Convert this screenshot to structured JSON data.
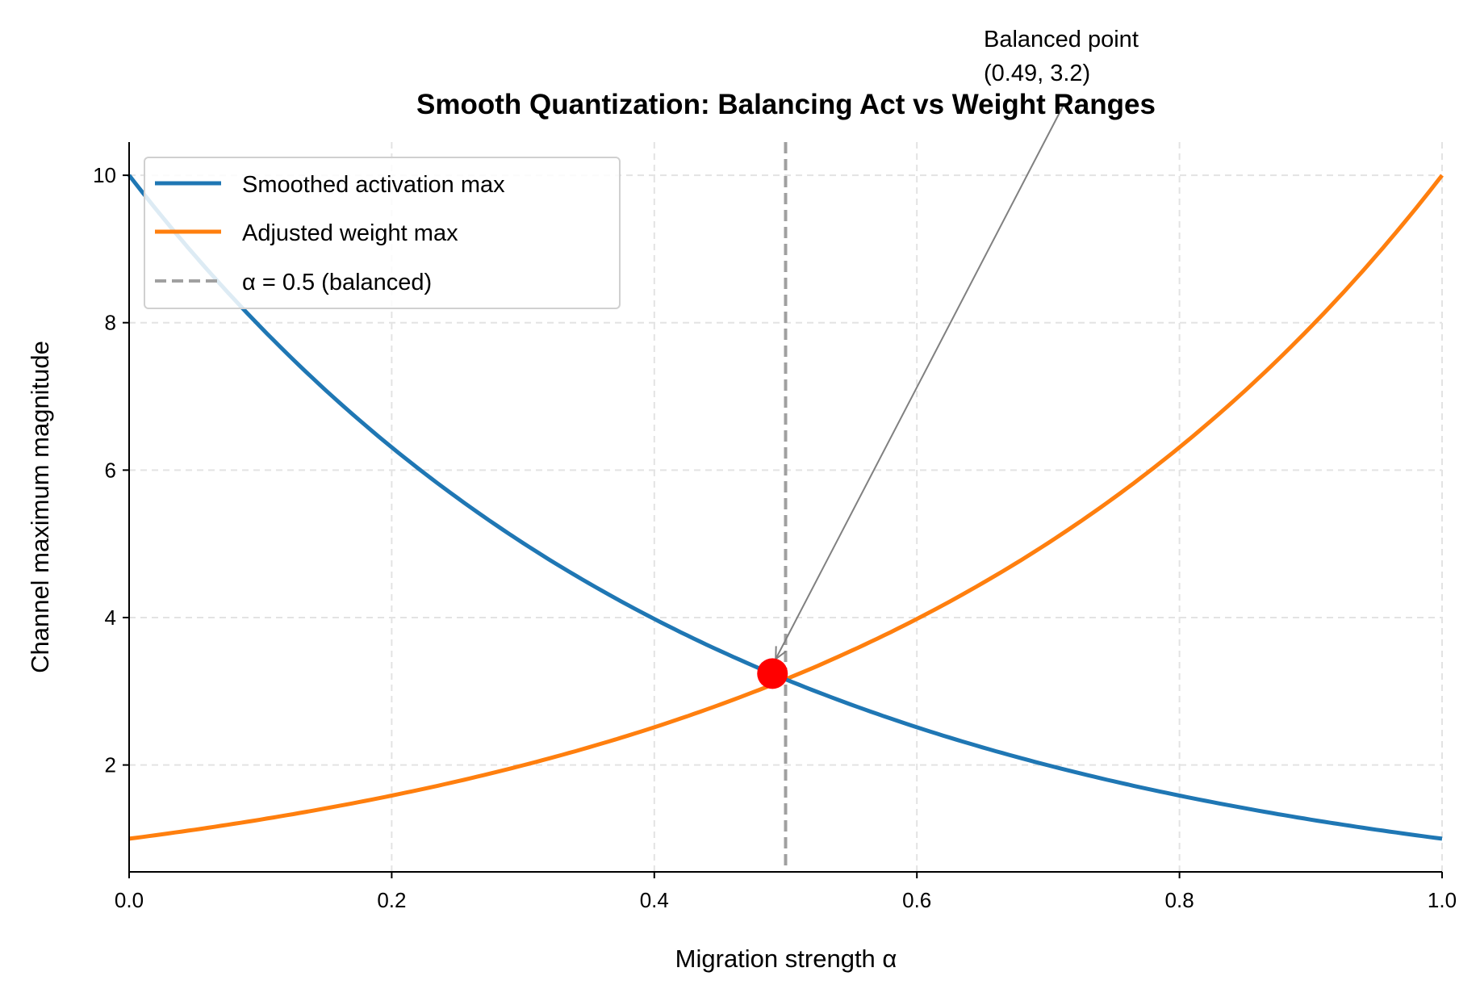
{
  "chart_data": {
    "type": "line",
    "title": "Smooth Quantization: Balancing Act vs Weight Ranges",
    "xlabel": "Migration strength α",
    "ylabel": "Channel maximum magnitude",
    "xlim": [
      0.0,
      1.0
    ],
    "ylim": [
      0.55,
      10.45
    ],
    "xticks": [
      "0.0",
      "0.2",
      "0.4",
      "0.6",
      "0.8",
      "1.0"
    ],
    "yticks": [
      "2",
      "4",
      "6",
      "8",
      "10"
    ],
    "grid": true,
    "legend_position": "top-left",
    "series": [
      {
        "name": "Smoothed activation max",
        "color": "#1f77b4",
        "formula": "10^(1-α)",
        "x": [
          0,
          0.1,
          0.2,
          0.3,
          0.4,
          0.5,
          0.6,
          0.7,
          0.8,
          0.9,
          1.0
        ],
        "y": [
          10,
          7.94,
          6.31,
          5.01,
          3.98,
          3.16,
          2.51,
          2.0,
          1.58,
          1.26,
          1.0
        ]
      },
      {
        "name": "Adjusted weight max",
        "color": "#ff7f0e",
        "formula": "10^α",
        "x": [
          0,
          0.1,
          0.2,
          0.3,
          0.4,
          0.5,
          0.6,
          0.7,
          0.8,
          0.9,
          1.0
        ],
        "y": [
          1.0,
          1.26,
          1.58,
          2.0,
          2.51,
          3.16,
          3.98,
          5.01,
          6.31,
          7.94,
          10
        ]
      }
    ],
    "vline": {
      "x": 0.5,
      "label": "α = 0.5 (balanced)",
      "color": "#a0a0a0",
      "style": "dashed"
    },
    "marker": {
      "x": 0.49,
      "y": 3.24,
      "color": "#ff0000"
    },
    "annotation": {
      "line1": "Balanced point",
      "line2": "(0.49, 3.2)",
      "arrow_color": "#808080"
    }
  }
}
